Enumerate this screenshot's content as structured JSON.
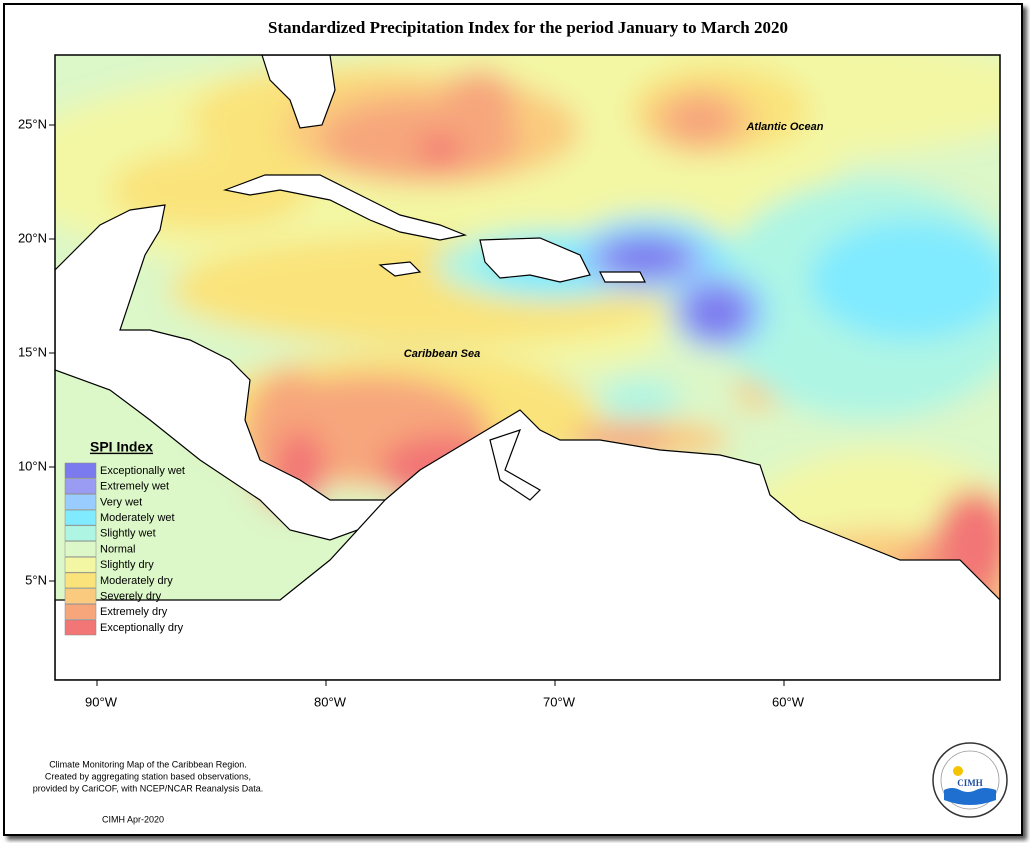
{
  "title": "Standardized Precipitation Index for the period January to March 2020",
  "map": {
    "lat_ticks": [
      {
        "value": 25,
        "label": "25°N"
      },
      {
        "value": 20,
        "label": "20°N"
      },
      {
        "value": 15,
        "label": "15°N"
      },
      {
        "value": 10,
        "label": "10°N"
      },
      {
        "value": 5,
        "label": "5°N"
      }
    ],
    "lon_ticks": [
      {
        "value": -90,
        "label": "90°W"
      },
      {
        "value": -80,
        "label": "80°W"
      },
      {
        "value": -70,
        "label": "70°W"
      },
      {
        "value": -60,
        "label": "60°W"
      }
    ],
    "place_labels": [
      "Atlantic Ocean",
      "Caribbean Sea"
    ]
  },
  "legend": {
    "title": "SPI Index",
    "items": [
      {
        "label": "Exceptionally wet",
        "color": "#7b7bef"
      },
      {
        "label": "Extremely wet",
        "color": "#9a9cf3"
      },
      {
        "label": "Very wet",
        "color": "#99ccff"
      },
      {
        "label": "Moderately wet",
        "color": "#80eaff"
      },
      {
        "label": "Slightly wet",
        "color": "#aef5e4"
      },
      {
        "label": "Normal",
        "color": "#dcf7c8"
      },
      {
        "label": "Slightly dry",
        "color": "#f3f7a4"
      },
      {
        "label": "Moderately dry",
        "color": "#fae37a"
      },
      {
        "label": "Severely dry",
        "color": "#facb7e"
      },
      {
        "label": "Extremely dry",
        "color": "#f7a67c"
      },
      {
        "label": "Exceptionally dry",
        "color": "#f27676"
      }
    ]
  },
  "footer": {
    "lines": [
      "Climate Monitoring Map of the Caribbean Region.",
      "Created by aggregating station based observations,",
      "provided by CariCOF, with NCEP/NCAR Reanalysis Data."
    ],
    "credit": "CIMH Apr-2020"
  },
  "logo": {
    "text": "CIMH"
  }
}
